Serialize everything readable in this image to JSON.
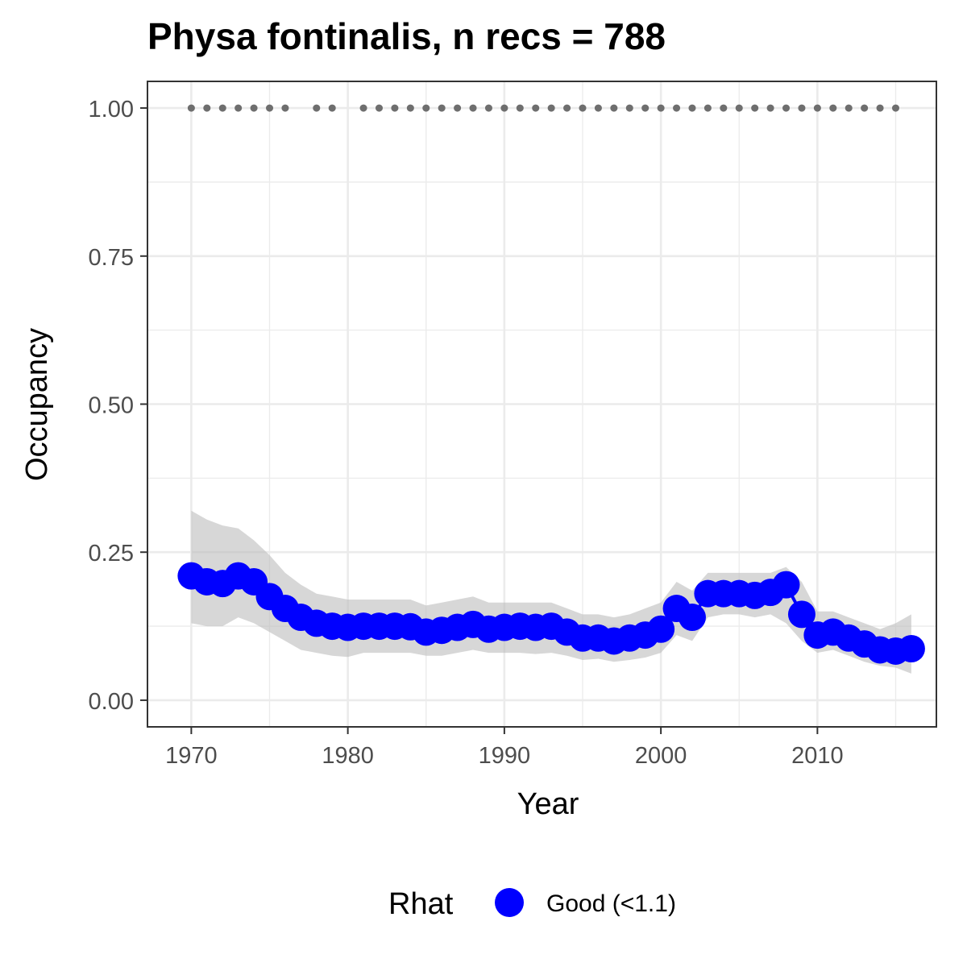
{
  "chart_data": {
    "type": "line",
    "title": "Physa fontinalis, n recs = 788",
    "xlabel": "Year",
    "ylabel": "Occupancy",
    "xlim": [
      1967.2,
      2017.6
    ],
    "ylim": [
      -0.045,
      1.045
    ],
    "xticks": [
      1970,
      1980,
      1990,
      2000,
      2010
    ],
    "xtick_labels": [
      "1970",
      "1980",
      "1990",
      "2000",
      "2010"
    ],
    "yticks": [
      0,
      0.25,
      0.5,
      0.75,
      1.0
    ],
    "ytick_labels": [
      "0.00",
      "0.25",
      "0.50",
      "0.75",
      "1.00"
    ],
    "grid": true,
    "legend": {
      "title": "Rhat",
      "position": "bottom",
      "entries": [
        {
          "label": "Good (<1.1)",
          "color": "#0000ff"
        }
      ]
    },
    "series": [
      {
        "name": "Good (<1.1)",
        "color": "#0000ff",
        "x": [
          1970,
          1971,
          1972,
          1973,
          1974,
          1975,
          1976,
          1977,
          1978,
          1979,
          1980,
          1981,
          1982,
          1983,
          1984,
          1985,
          1986,
          1987,
          1988,
          1989,
          1990,
          1991,
          1992,
          1993,
          1994,
          1995,
          1996,
          1997,
          1998,
          1999,
          2000,
          2001,
          2002,
          2003,
          2004,
          2005,
          2006,
          2007,
          2008,
          2009,
          2010,
          2011,
          2012,
          2013,
          2014,
          2015,
          2016
        ],
        "y": [
          0.21,
          0.2,
          0.197,
          0.21,
          0.2,
          0.175,
          0.155,
          0.14,
          0.13,
          0.125,
          0.123,
          0.125,
          0.125,
          0.125,
          0.124,
          0.115,
          0.118,
          0.123,
          0.128,
          0.12,
          0.123,
          0.125,
          0.123,
          0.125,
          0.115,
          0.105,
          0.105,
          0.1,
          0.105,
          0.11,
          0.12,
          0.155,
          0.14,
          0.18,
          0.18,
          0.18,
          0.177,
          0.182,
          0.195,
          0.145,
          0.11,
          0.115,
          0.105,
          0.095,
          0.085,
          0.083,
          0.087
        ],
        "lower": [
          0.13,
          0.125,
          0.125,
          0.14,
          0.13,
          0.115,
          0.1,
          0.085,
          0.08,
          0.075,
          0.073,
          0.08,
          0.08,
          0.08,
          0.08,
          0.075,
          0.075,
          0.08,
          0.085,
          0.08,
          0.08,
          0.08,
          0.078,
          0.08,
          0.075,
          0.068,
          0.07,
          0.065,
          0.068,
          0.072,
          0.08,
          0.11,
          0.1,
          0.14,
          0.145,
          0.145,
          0.14,
          0.145,
          0.13,
          0.1,
          0.08,
          0.085,
          0.075,
          0.065,
          0.058,
          0.055,
          0.045
        ],
        "upper": [
          0.32,
          0.305,
          0.295,
          0.29,
          0.27,
          0.245,
          0.215,
          0.195,
          0.18,
          0.175,
          0.17,
          0.17,
          0.17,
          0.17,
          0.17,
          0.16,
          0.165,
          0.17,
          0.175,
          0.165,
          0.165,
          0.165,
          0.165,
          0.165,
          0.155,
          0.145,
          0.145,
          0.14,
          0.145,
          0.155,
          0.165,
          0.2,
          0.185,
          0.215,
          0.215,
          0.215,
          0.215,
          0.215,
          0.225,
          0.2,
          0.15,
          0.15,
          0.14,
          0.13,
          0.12,
          0.13,
          0.145
        ]
      }
    ],
    "record_points": {
      "y": 1.0,
      "color": "#6e6e6e",
      "x": [
        1970,
        1971,
        1972,
        1973,
        1974,
        1975,
        1976,
        1978,
        1979,
        1981,
        1982,
        1983,
        1984,
        1985,
        1986,
        1987,
        1988,
        1989,
        1990,
        1991,
        1992,
        1993,
        1994,
        1995,
        1996,
        1997,
        1998,
        1999,
        2000,
        2001,
        2002,
        2003,
        2004,
        2005,
        2006,
        2007,
        2008,
        2009,
        2010,
        2011,
        2012,
        2013,
        2014,
        2015
      ]
    }
  }
}
